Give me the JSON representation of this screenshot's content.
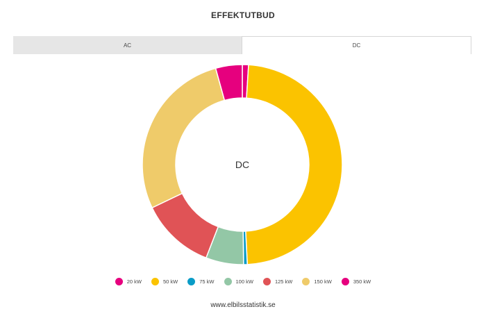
{
  "header": {
    "title": "EFFEKTUTBUD"
  },
  "tabs": [
    {
      "label": "AC",
      "active": false
    },
    {
      "label": "DC",
      "active": true
    }
  ],
  "chart_data": {
    "type": "pie",
    "subtype": "donut",
    "center_label": "DC",
    "categories": [
      "20 kW",
      "50 kW",
      "75 kW",
      "100 kW",
      "125 kW",
      "150 kW",
      "350 kW"
    ],
    "values": [
      1.0,
      48.2,
      0.6,
      6.1,
      12.0,
      27.8,
      4.3
    ],
    "colors": [
      "#e6007e",
      "#fbc300",
      "#0a9cc7",
      "#93c7a6",
      "#e05356",
      "#efcb6a",
      "#e6007e"
    ],
    "legend_position": "bottom"
  },
  "footer": {
    "text": "www.elbilsstatistik.se"
  }
}
